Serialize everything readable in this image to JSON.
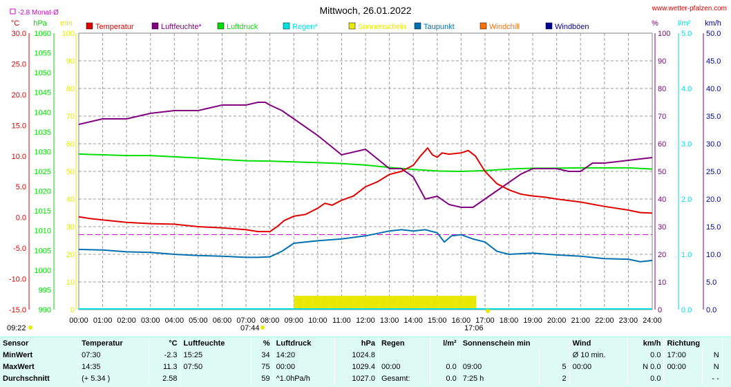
{
  "title": "Mittwoch, 26.01.2022",
  "source": "www.wetter-pfalzen.com",
  "month_avg_label": "-2.8 Monat-Ø",
  "bottom_left_time": "09:22",
  "sunrise_label": "07:44",
  "sunset_label": "17:06",
  "colors": {
    "temperature": "#e00000",
    "humidity": "#800080",
    "pressure": "#00dd00",
    "rain": "#00e0e0",
    "sunshine": "#e8e800",
    "dewpoint": "#0070b0",
    "windchill": "#ff7000",
    "gusts": "#000090",
    "month_avg": "#cc00cc"
  },
  "legend": [
    {
      "label": "Temperatur",
      "color": "#e00000"
    },
    {
      "label": "Luftfeuchte*",
      "color": "#800080"
    },
    {
      "label": "Luftdruck",
      "color": "#00dd00"
    },
    {
      "label": "Regen*",
      "color": "#00e0e0"
    },
    {
      "label": "Sonnenschein",
      "color": "#e8e800"
    },
    {
      "label": "Taupunkt",
      "color": "#0070b0"
    },
    {
      "label": "Windchill",
      "color": "#ff7000"
    },
    {
      "label": "Windböen",
      "color": "#000090"
    }
  ],
  "axes": {
    "temp": {
      "unit": "°C",
      "ticks": [
        "30.0",
        "25.0",
        "20.0",
        "15.0",
        "10.0",
        "5.0",
        "0.0",
        "-5.0",
        "-10.0",
        "-15.0"
      ],
      "range": [
        -15,
        30
      ]
    },
    "pressure": {
      "unit": "hPa",
      "ticks": [
        "1060",
        "1055",
        "1050",
        "1045",
        "1040",
        "1035",
        "1030",
        "1025",
        "1020",
        "1015",
        "1010",
        "1005",
        "1000",
        "995",
        "990"
      ],
      "range": [
        990,
        1060
      ]
    },
    "minutes": {
      "unit": "min",
      "ticks": [
        "100",
        "90",
        "80",
        "70",
        "60",
        "50",
        "40",
        "30",
        "20",
        "10",
        "0"
      ],
      "range": [
        0,
        100
      ]
    },
    "humidity": {
      "unit": "%",
      "ticks": [
        "100",
        "90",
        "80",
        "70",
        "60",
        "50",
        "40",
        "30",
        "20",
        "10",
        "0"
      ],
      "range": [
        0,
        100
      ]
    },
    "rain": {
      "unit": "l/m²",
      "ticks": [
        "5.0",
        "4.0",
        "3.0",
        "2.0",
        "1.0",
        "0.0"
      ],
      "range": [
        0,
        5
      ]
    },
    "wind": {
      "unit": "km/h",
      "ticks": [
        "50.0",
        "45.0",
        "40.0",
        "35.0",
        "30.0",
        "25.0",
        "20.0",
        "15.0",
        "10.0",
        "5.0",
        "0.0"
      ],
      "range": [
        0,
        50
      ]
    }
  },
  "x_ticks": [
    "00:00",
    "01:00",
    "02:00",
    "03:00",
    "04:00",
    "05:00",
    "06:00",
    "07:00",
    "08:00",
    "09:00",
    "10:00",
    "11:00",
    "12:00",
    "13:00",
    "14:00",
    "15:00",
    "16:00",
    "17:00",
    "18:00",
    "19:00",
    "20:00",
    "21:00",
    "22:00",
    "23:00",
    "24:00"
  ],
  "chart_data": {
    "type": "line",
    "title": "Mittwoch, 26.01.2022",
    "x_unit": "hour",
    "xlim": [
      0,
      24
    ],
    "month_avg_temp": -2.8,
    "series": [
      {
        "name": "Temperatur",
        "axis": "temp",
        "x": [
          0,
          0.5,
          1,
          2,
          3,
          4,
          5,
          6,
          7,
          7.5,
          8,
          8.3,
          8.6,
          9,
          9.5,
          10,
          10.3,
          10.6,
          11,
          11.5,
          12,
          12.5,
          13,
          13.5,
          14,
          14.3,
          14.6,
          14.8,
          15,
          15.2,
          15.5,
          16,
          16.3,
          16.6,
          17,
          17.5,
          18,
          18.5,
          19,
          19.5,
          20,
          21,
          22,
          23,
          23.5,
          24
        ],
        "y": [
          0.1,
          -0.2,
          -0.4,
          -0.8,
          -1.0,
          -1.1,
          -1.5,
          -1.7,
          -2.0,
          -2.3,
          -2.3,
          -1.5,
          -0.5,
          0.2,
          0.5,
          1.5,
          2.3,
          2.0,
          2.8,
          3.5,
          5.0,
          5.8,
          7.0,
          7.5,
          8.5,
          10.0,
          11.3,
          10.2,
          9.8,
          10.5,
          10.3,
          10.5,
          10.9,
          10.0,
          7.5,
          5.5,
          4.5,
          3.8,
          3.5,
          3.3,
          3.0,
          2.5,
          1.8,
          1.2,
          0.8,
          0.7
        ]
      },
      {
        "name": "Luftfeuchte*",
        "axis": "humidity",
        "x": [
          0,
          0.5,
          1,
          2,
          3,
          4,
          5,
          6,
          7,
          7.5,
          7.8,
          8,
          8.5,
          9,
          10,
          11,
          12,
          13,
          13.5,
          14,
          14.5,
          15,
          15.5,
          16,
          16.5,
          17,
          17.5,
          18,
          18.5,
          19,
          19.5,
          20,
          20.5,
          21,
          21.5,
          22,
          23,
          24
        ],
        "y": [
          67,
          68,
          69,
          69,
          71,
          72,
          72,
          74,
          74,
          75,
          75,
          74,
          72,
          69,
          63,
          56,
          58,
          51,
          51,
          48,
          40,
          41,
          38,
          37,
          37,
          40,
          43,
          46,
          49,
          51,
          51,
          51,
          50,
          50,
          53,
          53,
          54,
          55
        ]
      },
      {
        "name": "Luftdruck",
        "axis": "pressure",
        "x": [
          0,
          1,
          2,
          3,
          4,
          5,
          6,
          7,
          8,
          9,
          10,
          11,
          12,
          13,
          14,
          15,
          16,
          17,
          18,
          19,
          20,
          21,
          22,
          23,
          24
        ],
        "y": [
          1029.4,
          1029.2,
          1029.0,
          1029.0,
          1028.7,
          1028.4,
          1028.0,
          1027.7,
          1027.6,
          1027.4,
          1027.2,
          1027.0,
          1026.6,
          1026.0,
          1025.5,
          1025.1,
          1025.0,
          1025.2,
          1025.6,
          1025.8,
          1025.8,
          1025.9,
          1025.9,
          1025.9,
          1025.6
        ]
      },
      {
        "name": "Taupunkt",
        "axis": "temp",
        "x": [
          0,
          1,
          2,
          3,
          4,
          5,
          6,
          7,
          7.5,
          8,
          8.5,
          9,
          10,
          11,
          12,
          12.5,
          13,
          13.5,
          14,
          14.5,
          15,
          15.3,
          15.6,
          16,
          16.5,
          17,
          17.5,
          18,
          19,
          20,
          21,
          22,
          23,
          23.5,
          24
        ],
        "y": [
          -5.2,
          -5.3,
          -5.6,
          -5.7,
          -6.0,
          -6.2,
          -6.3,
          -6.5,
          -6.5,
          -6.4,
          -5.5,
          -4.2,
          -3.8,
          -3.5,
          -3.0,
          -2.6,
          -2.2,
          -2.0,
          -2.2,
          -2.0,
          -2.5,
          -4.0,
          -3.0,
          -2.8,
          -3.5,
          -4.0,
          -5.5,
          -6.0,
          -5.8,
          -6.1,
          -6.3,
          -6.7,
          -6.8,
          -7.2,
          -7.0
        ]
      },
      {
        "name": "Sonnenschein",
        "axis": "minutes",
        "x_start": 9.0,
        "x_end": 16.6,
        "value": 5
      }
    ]
  },
  "stats": {
    "headers": [
      "Sensor",
      "Temperatur",
      "°C",
      "Luftfeuchte",
      "%",
      "Luftdruck",
      "hPa",
      "Regen",
      "l/m²",
      "Sonnenschein min",
      "Wind",
      "km/h",
      "Richtung"
    ],
    "rows": [
      {
        "sensor": "MinWert",
        "t_time": "07:30",
        "t_val": "-2.3",
        "h_time": "15:25",
        "h_val": "34",
        "p_time": "14:20",
        "p_val": "1024.8",
        "r_time": "",
        "r_val": "",
        "s_time": "",
        "s_val": "",
        "w_time": "Ø 10 min.",
        "w_val": "0.0",
        "d_time": "17:00",
        "d_val": "N"
      },
      {
        "sensor": "MaxWert",
        "t_time": "14:35",
        "t_val": "11.3",
        "h_time": "07:50",
        "h_val": "75",
        "p_time": "00:00",
        "p_val": "1029.4",
        "r_time": "00:00",
        "r_val": "0.0",
        "s_time": "09:00",
        "s_val": "5",
        "w_time": "00:00",
        "w_val": "N 0.0",
        "d_time": "00:00",
        "d_val": "N"
      },
      {
        "sensor": "Durchschnitt",
        "t_time": "(+ 5.34 )",
        "t_val": "2.58",
        "h_time": "",
        "h_val": "59",
        "p_time": "^1.0hPa/h",
        "p_val": "1027.0",
        "r_time": "Gesamt:",
        "r_val": "0.0",
        "s_time": "7:25 h",
        "s_val": "2",
        "w_time": "",
        "w_val": "0.0",
        "d_time": "",
        "d_val": "- -"
      }
    ]
  }
}
